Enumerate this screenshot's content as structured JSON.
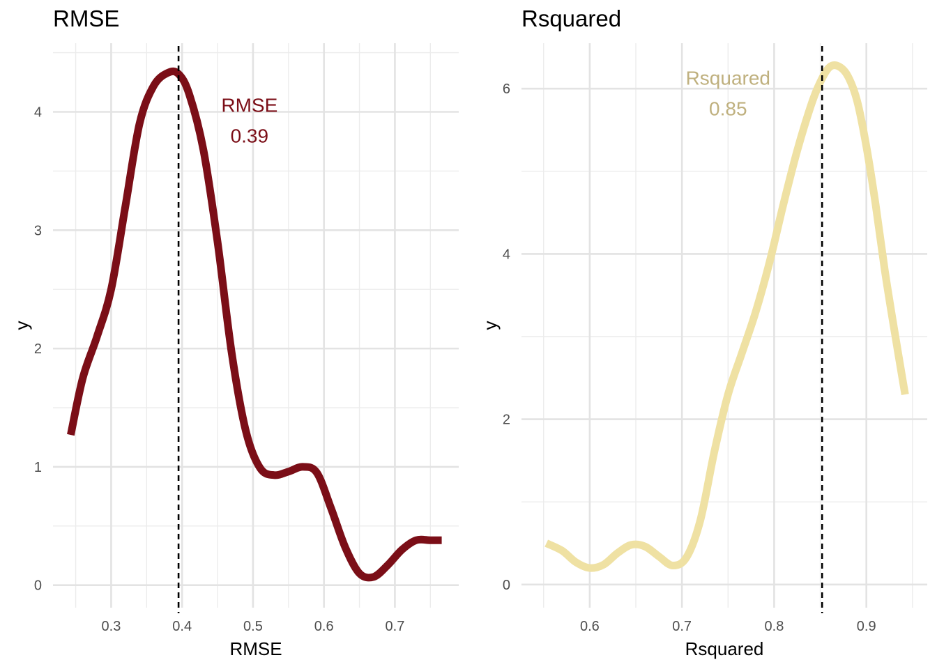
{
  "chart_data": [
    {
      "type": "line",
      "title": "RMSE",
      "xlabel": "RMSE",
      "ylabel": "y",
      "xlim": [
        0.218,
        0.79
      ],
      "ylim": [
        -0.19,
        4.58
      ],
      "x_ticks": [
        0.3,
        0.4,
        0.5,
        0.6,
        0.7
      ],
      "x_tick_labels": [
        "0.3",
        "0.4",
        "0.5",
        "0.6",
        "0.7"
      ],
      "y_ticks": [
        0,
        1,
        2,
        3,
        4
      ],
      "y_tick_labels": [
        "0",
        "1",
        "2",
        "3",
        "4"
      ],
      "grid": true,
      "line_color": "#7b0e17",
      "vline": 0.395,
      "annotation": {
        "lines": [
          "RMSE",
          "0.39"
        ],
        "x": 0.495,
        "y": 4.0,
        "color": "#7b0e17"
      },
      "series": [
        {
          "x": [
            0.243,
            0.26,
            0.28,
            0.3,
            0.32,
            0.34,
            0.36,
            0.38,
            0.395,
            0.41,
            0.43,
            0.45,
            0.47,
            0.49,
            0.51,
            0.53,
            0.55,
            0.57,
            0.59,
            0.61,
            0.63,
            0.65,
            0.67,
            0.69,
            0.71,
            0.73,
            0.75,
            0.766
          ],
          "y": [
            1.27,
            1.75,
            2.1,
            2.5,
            3.2,
            3.9,
            4.22,
            4.33,
            4.32,
            4.15,
            3.68,
            2.9,
            1.96,
            1.3,
            0.99,
            0.93,
            0.96,
            1.0,
            0.95,
            0.65,
            0.32,
            0.1,
            0.07,
            0.17,
            0.3,
            0.38,
            0.38,
            0.38
          ]
        }
      ]
    },
    {
      "type": "line",
      "title": "Rsquared",
      "xlabel": "Rsquared",
      "ylabel": "y",
      "xlim": [
        0.526,
        0.966
      ],
      "ylim": [
        -0.28,
        6.55
      ],
      "x_ticks": [
        0.6,
        0.7,
        0.8,
        0.9
      ],
      "x_tick_labels": [
        "0.6",
        "0.7",
        "0.8",
        "0.9"
      ],
      "y_ticks": [
        0,
        2,
        4,
        6
      ],
      "y_tick_labels": [
        "0",
        "2",
        "4",
        "6"
      ],
      "grid": true,
      "line_color": "#efe1a3",
      "vline": 0.852,
      "annotation": {
        "lines": [
          "Rsquared",
          "0.85"
        ],
        "x": 0.75,
        "y": 6.05,
        "color": "#bfb07e"
      },
      "series": [
        {
          "x": [
            0.553,
            0.57,
            0.585,
            0.6,
            0.615,
            0.63,
            0.645,
            0.66,
            0.675,
            0.69,
            0.705,
            0.72,
            0.735,
            0.75,
            0.765,
            0.78,
            0.795,
            0.81,
            0.825,
            0.84,
            0.85,
            0.86,
            0.87,
            0.88,
            0.89,
            0.9,
            0.91,
            0.92,
            0.93,
            0.942
          ],
          "y": [
            0.5,
            0.41,
            0.27,
            0.2,
            0.24,
            0.38,
            0.48,
            0.46,
            0.34,
            0.23,
            0.33,
            0.78,
            1.6,
            2.3,
            2.8,
            3.3,
            3.9,
            4.6,
            5.25,
            5.8,
            6.08,
            6.26,
            6.27,
            6.15,
            5.85,
            5.3,
            4.6,
            3.8,
            3.1,
            2.3
          ]
        }
      ]
    }
  ]
}
